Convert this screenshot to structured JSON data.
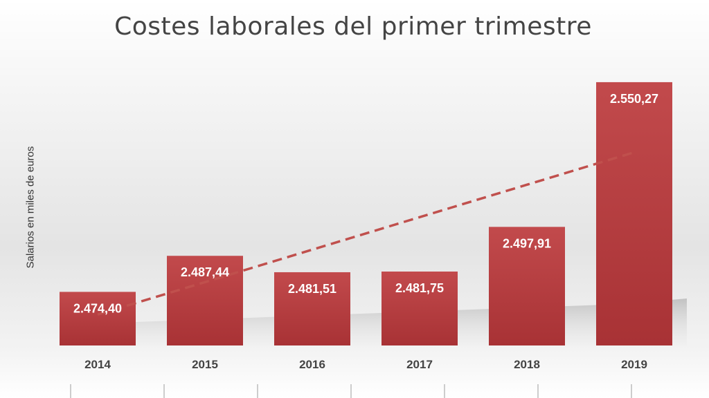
{
  "chart_data": {
    "type": "bar",
    "title": "Costes laborales del primer trimestre",
    "xlabel": "",
    "ylabel": "Salarios en miles de euros",
    "categories": [
      "2014",
      "2015",
      "2016",
      "2017",
      "2018",
      "2019"
    ],
    "values": [
      2474.4,
      2487.44,
      2481.51,
      2481.75,
      2497.91,
      2550.27
    ],
    "data_labels": [
      "2.474,40",
      "2.487,44",
      "2.481,51",
      "2.481,75",
      "2.497,91",
      "2.550,27"
    ],
    "trendline": "linear",
    "bar_color": "#b84042",
    "trend_color": "#c0504d",
    "grid": false,
    "legend": "none"
  }
}
